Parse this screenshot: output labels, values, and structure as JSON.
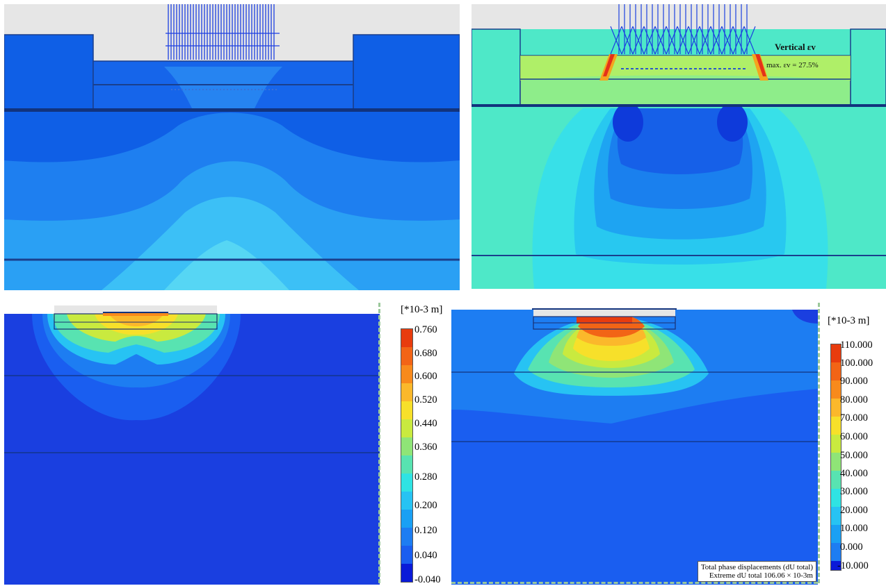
{
  "panels": {
    "top_left": {
      "name": "contour-plot-top-left"
    },
    "top_right": {
      "name": "contour-plot-top-right",
      "label_title": "Vertical εv",
      "label_max": "max. εv = 27.5%"
    },
    "bottom_left": {
      "name": "contour-plot-bottom-left",
      "legend_unit": "[*10-3 m]",
      "legend_ticks": [
        "0.760",
        "0.680",
        "0.600",
        "0.520",
        "0.440",
        "0.360",
        "0.280",
        "0.200",
        "0.120",
        "0.040",
        "-0.040"
      ],
      "legend_colors": [
        "#e83c0e",
        "#f26416",
        "#f88a1c",
        "#fbb82b",
        "#f7e02a",
        "#c9ea3f",
        "#8fe577",
        "#58e3b1",
        "#2fe3e3",
        "#27c3f3",
        "#1aa0f4",
        "#1d7df2",
        "#1a5ef0",
        "#1635e8",
        "#0a1ad8"
      ]
    },
    "bottom_right": {
      "name": "contour-plot-bottom-right",
      "legend_unit": "[*10-3 m]",
      "legend_ticks": [
        "110.000",
        "100.000",
        "90.000",
        "80.000",
        "70.000",
        "60.000",
        "50.000",
        "40.000",
        "30.000",
        "20.000",
        "10.000",
        "0.000",
        "-10.000"
      ],
      "legend_colors": [
        "#e83c0e",
        "#f26416",
        "#f88a1c",
        "#fbb82b",
        "#f7e02a",
        "#c9ea3f",
        "#8fe577",
        "#58e3b1",
        "#2fe3e3",
        "#27c3f3",
        "#1aa0f4",
        "#1d7df2",
        "#1a5ef0",
        "#1635e8",
        "#0a1ad8"
      ],
      "annotation_line1": "Total phase displacements (dU total)",
      "annotation_line2": "Extreme dU total 106.06 × 10-3m"
    }
  }
}
